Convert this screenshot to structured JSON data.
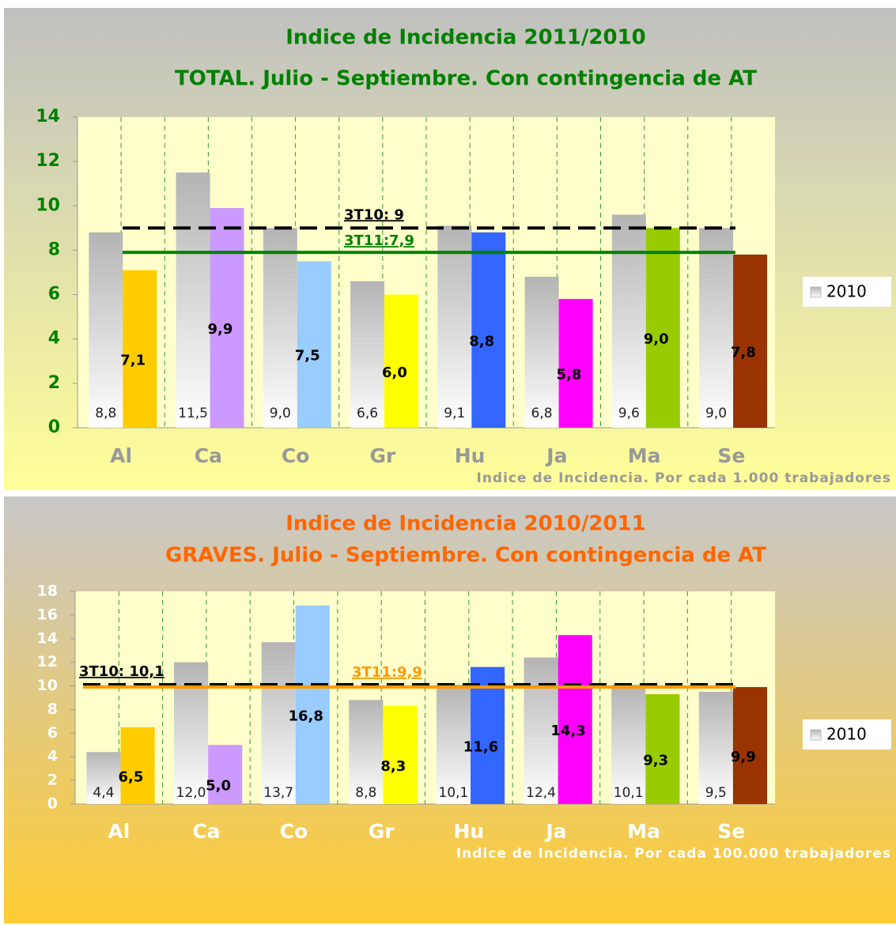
{
  "chart_data": [
    {
      "type": "bar",
      "title": "Indice de Incidencia 2011/2010",
      "subtitle": "TOTAL. Julio - Septiembre. Con contingencia de AT",
      "x_label": "Indice de Incidencia. Por cada 1.000 trabajadores",
      "title_color": "#008000",
      "tick_color": "#008000",
      "category_color": "#999999",
      "background": [
        "#c0c0c0",
        "#ffff99"
      ],
      "categories": [
        "Al",
        "Ca",
        "Co",
        "Gr",
        "Hu",
        "Ja",
        "Ma",
        "Se"
      ],
      "series": [
        {
          "name": "2010",
          "color": "#b4b4b4",
          "values": [
            8.8,
            11.5,
            9.0,
            6.6,
            9.1,
            6.8,
            9.6,
            9.0
          ],
          "value_labels": [
            "8,8",
            "11,5",
            "9,0",
            "6,6",
            "9,1",
            "6,8",
            "9,6",
            "9,0"
          ]
        },
        {
          "colors": [
            "#ffcc00",
            "#cc99ff",
            "#99ccff",
            "#ffff00",
            "#3366ff",
            "#ff00ff",
            "#99cc00",
            "#993300"
          ],
          "values": [
            7.1,
            9.9,
            7.5,
            6.0,
            8.8,
            5.8,
            9.0,
            7.8
          ],
          "value_labels": [
            "7,1",
            "9,9",
            "7,5",
            "6,0",
            "8,8",
            "5,8",
            "9,0",
            "7,8"
          ]
        }
      ],
      "reference_lines": [
        {
          "label": "3T10: 9",
          "value": 9,
          "style": "dashed",
          "color": "#000000"
        },
        {
          "label": "3T11:7,9",
          "value": 7.9,
          "style": "solid",
          "color": "#008000"
        }
      ],
      "ylim": [
        0,
        14
      ],
      "yticks": [
        0,
        2,
        4,
        6,
        8,
        10,
        12,
        14
      ],
      "grid": true,
      "legend": "right"
    },
    {
      "type": "bar",
      "title": "Indice de Incidencia 2010/2011",
      "subtitle": "GRAVES. Julio - Septiembre. Con contingencia de AT",
      "x_label": "Indice de Incidencia. Por cada 100.000 trabajadores",
      "title_color": "#ff6600",
      "tick_color": "#ffffff",
      "category_color": "#ffffff",
      "background": [
        "#c8c8c8",
        "#ffcc33"
      ],
      "categories": [
        "Al",
        "Ca",
        "Co",
        "Gr",
        "Hu",
        "Ja",
        "Ma",
        "Se"
      ],
      "series": [
        {
          "name": "2010",
          "color": "#b4b4b4",
          "values": [
            4.4,
            12.0,
            13.7,
            8.8,
            10.1,
            12.4,
            10.1,
            9.5
          ],
          "value_labels": [
            "4,4",
            "12,0",
            "13,7",
            "8,8",
            "10,1",
            "12,4",
            "10,1",
            "9,5"
          ]
        },
        {
          "colors": [
            "#ffcc00",
            "#cc99ff",
            "#99ccff",
            "#ffff00",
            "#3366ff",
            "#ff00ff",
            "#99cc00",
            "#993300"
          ],
          "values": [
            6.5,
            5.0,
            16.8,
            8.3,
            11.6,
            14.3,
            9.3,
            9.9
          ],
          "value_labels": [
            "6,5",
            "5,0",
            "16,8",
            "8,3",
            "11,6",
            "14,3",
            "9,3",
            "9,9"
          ]
        }
      ],
      "reference_lines": [
        {
          "label": "3T10: 10,1",
          "value": 10.1,
          "style": "dashed",
          "color": "#000000"
        },
        {
          "label": "3T11:9,9",
          "value": 9.9,
          "style": "solid",
          "color": "#ff9900"
        }
      ],
      "ylim": [
        0,
        18
      ],
      "yticks": [
        0,
        2,
        4,
        6,
        8,
        10,
        12,
        14,
        16,
        18
      ],
      "grid": true,
      "legend": "right"
    }
  ]
}
